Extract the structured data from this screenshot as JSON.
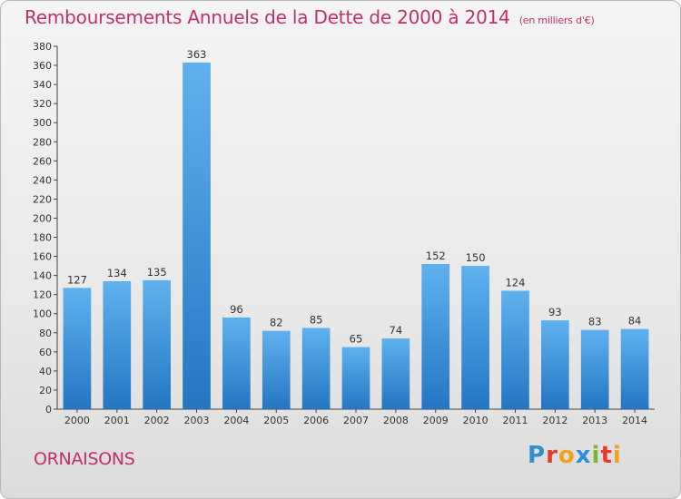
{
  "header": {
    "title": "Remboursements Annuels de la Dette de 2000 à 2014",
    "subtitle": "(en milliers d'€)"
  },
  "footer": {
    "town": "ORNAISONS",
    "logo_letters": [
      "P",
      "r",
      "o",
      "x",
      "i",
      "t",
      "i"
    ],
    "logo_colors": [
      "#2f8fd0",
      "#e23c2e",
      "#f0a21b",
      "#2f8fd0",
      "#7cb82f",
      "#e23c2e",
      "#f0a21b"
    ]
  },
  "chart_data": {
    "type": "bar",
    "title": "Remboursements Annuels de la Dette de 2000 à 2014",
    "subtitle": "(en milliers d'€)",
    "xlabel": "",
    "ylabel": "",
    "categories": [
      "2000",
      "2001",
      "2002",
      "2003",
      "2004",
      "2005",
      "2006",
      "2007",
      "2008",
      "2009",
      "2010",
      "2011",
      "2012",
      "2013",
      "2014"
    ],
    "values": [
      127,
      134,
      135,
      363,
      96,
      82,
      85,
      65,
      74,
      152,
      150,
      124,
      93,
      83,
      84
    ],
    "ylim": [
      0,
      380
    ],
    "ytick_step": 20,
    "grid": false,
    "bar_color": "#3b8fd9"
  }
}
